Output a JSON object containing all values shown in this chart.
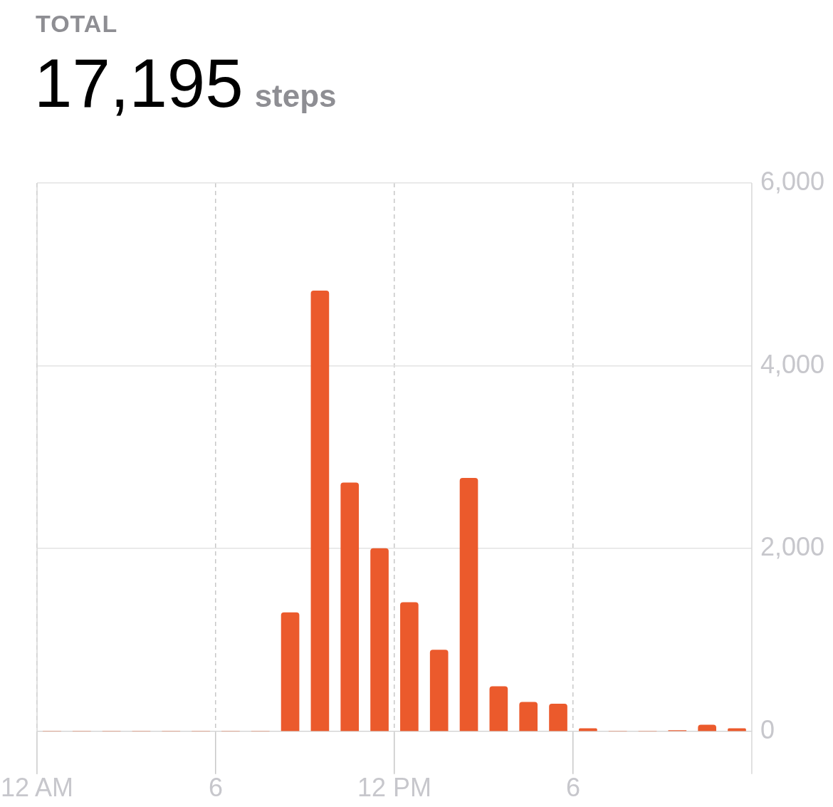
{
  "chart_data": {
    "type": "bar",
    "title": "TOTAL",
    "subtitle": "17,195 steps",
    "x": [
      "--01-01T00:30",
      "--01-01T01:30",
      "--01-01T02:30",
      "--01-01T03:30",
      "--01-01T04:30",
      "--01-01T05:30",
      "--01-01T06:30",
      "--01-01T07:30",
      "--01-01T08:30",
      "--01-01T09:30",
      "--01-01T10:30",
      "--01-01T11:30",
      "--01-01T12:30",
      "--01-01T13:30",
      "--01-01T14:30",
      "--01-01T15:30",
      "--01-01T16:30",
      "--01-01T17:30",
      "--01-01T18:30",
      "--01-01T19:30",
      "--01-01T20:30",
      "--01-01T21:30",
      "--01-01T22:30",
      "--01-01T23:30"
    ],
    "values": [
      0,
      0,
      0,
      0,
      0,
      0,
      0,
      0,
      1300,
      4820,
      2720,
      2000,
      1410,
      890,
      2770,
      490,
      320,
      300,
      30,
      0,
      0,
      10,
      70,
      30
    ],
    "color": "#eb5a2c",
    "xlim": [
      "--01-01T00:00",
      "--01-02T00:00"
    ],
    "xticks": [
      {
        "value": "--01-01T00:00",
        "label": "12 AM"
      },
      {
        "value": "--01-01T06:00",
        "label": "6"
      },
      {
        "value": "--01-01T12:00",
        "label": "12 PM"
      },
      {
        "value": "--01-01T18:00",
        "label": "6"
      }
    ],
    "ylim": [
      0,
      6000
    ],
    "yticks": [
      {
        "value": 0,
        "label": "0"
      },
      {
        "value": 2000,
        "label": "2,000"
      },
      {
        "value": 4000,
        "label": "4,000"
      },
      {
        "value": 6000,
        "label": "6,000"
      }
    ],
    "grid": true
  }
}
